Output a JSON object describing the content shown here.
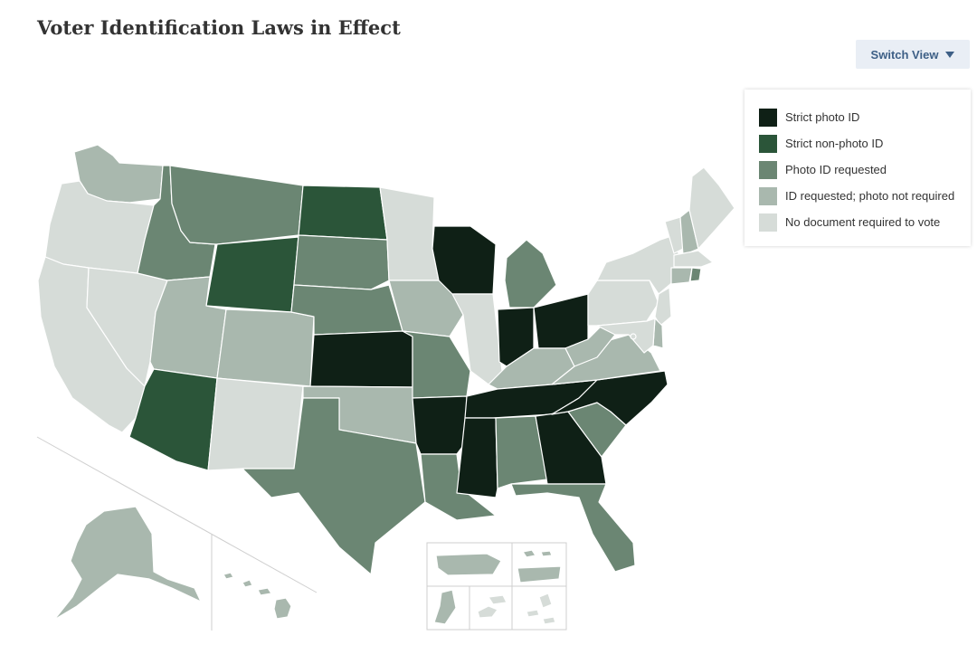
{
  "title": "Voter Identification Laws in Effect",
  "switch_view": {
    "label": "Switch View",
    "icon": "caret-down-icon"
  },
  "legend": [
    {
      "key": "strict_photo",
      "label": "Strict photo ID",
      "color": "#0f2016"
    },
    {
      "key": "strict_nonphoto",
      "label": "Strict non-photo ID",
      "color": "#2b5539"
    },
    {
      "key": "photo_requested",
      "label": "Photo ID requested",
      "color": "#6b8673"
    },
    {
      "key": "id_requested",
      "label": "ID requested; photo not required",
      "color": "#a9b8ae"
    },
    {
      "key": "no_doc",
      "label": "No document required to vote",
      "color": "#d6dcd8"
    }
  ],
  "states": {
    "WA": "id_requested",
    "OR": "no_doc",
    "CA": "no_doc",
    "NV": "no_doc",
    "ID": "photo_requested",
    "MT": "photo_requested",
    "WY": "strict_nonphoto",
    "UT": "id_requested",
    "CO": "id_requested",
    "AZ": "strict_nonphoto",
    "NM": "no_doc",
    "ND": "strict_nonphoto",
    "SD": "photo_requested",
    "NE": "photo_requested",
    "KS": "strict_photo",
    "OK": "id_requested",
    "TX": "photo_requested",
    "MN": "no_doc",
    "IA": "id_requested",
    "MO": "photo_requested",
    "AR": "strict_photo",
    "LA": "photo_requested",
    "WI": "strict_photo",
    "IL": "no_doc",
    "MI": "photo_requested",
    "IN": "strict_photo",
    "OH": "strict_photo",
    "KY": "id_requested",
    "TN": "strict_photo",
    "MS": "strict_photo",
    "AL": "photo_requested",
    "GA": "strict_photo",
    "FL": "photo_requested",
    "SC": "photo_requested",
    "NC": "strict_photo",
    "VA": "id_requested",
    "WV": "id_requested",
    "PA": "no_doc",
    "NY": "no_doc",
    "VT": "no_doc",
    "NH": "id_requested",
    "ME": "no_doc",
    "MA": "no_doc",
    "CT": "id_requested",
    "RI": "photo_requested",
    "NJ": "no_doc",
    "DE": "id_requested",
    "MD": "no_doc",
    "DC": "no_doc",
    "AK": "id_requested",
    "HI": "id_requested",
    "PR": "id_requested",
    "VI": "id_requested",
    "GU": "id_requested",
    "AS": "no_doc",
    "MP": "no_doc"
  }
}
